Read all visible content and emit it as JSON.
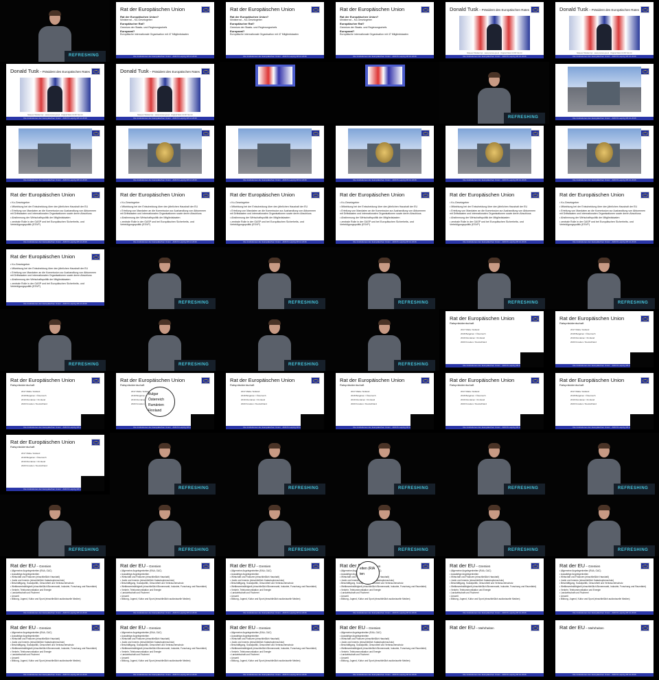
{
  "footer_text": "Die Institutionen der Europäischen Union · ADICS Leipzig 08.12.2016",
  "podium_brand": "REFRESHING",
  "slides": {
    "rat_intro": {
      "title": "Rat der Europäischen Union",
      "items": [
        {
          "head": "Rat der Europäischen Union?",
          "text": "Ministerrat – Ko-Gesetzgeber"
        },
        {
          "head": "Europäischer Rat?",
          "text": "Gremium der Staats- und Regierungschefs"
        },
        {
          "head": "Europarat?",
          "text": "Europäische internationale Organisation mit 47 Mitgliedstaaten"
        }
      ]
    },
    "tusk": {
      "title_main": "Donald Tusk",
      "title_sub": " – Präsident des Europäischen Rates",
      "caption": "Mateusz Wlodarczyk · www.premier.gov.pl · Original Work CC BY-SA 3.0"
    },
    "building_caption": "Mateusz Wlodarczyk · www.premier.gov.pl · Original Work CC BY-SA 3.0",
    "rat_tasks": {
      "title": "Rat der Europäischen Union",
      "items": [
        "• Ko-Gesetzgeber",
        "• Mitwirkung bei der Entscheidung über den jährlichen Haushalt der EU",
        "• Erteilung von Mandaten an die Kommission zur Aushandlung von Abkommen mit Drittstaaten und internationalen Organisationen sowie deren Abschluss",
        "• Abstimmung der Wirtschaftspolitik der Mitgliedstaaten",
        "• zentrale Rolle in der GASP und bei Europäischen Sicherheits- und Verteidigungspolitik (ESVP)"
      ]
    },
    "ratspraesidentschaft": {
      "title": "Rat der Europäischen Union",
      "subtitle": "Ratspräsidentschaft",
      "years": [
        "2017",
        "2018",
        "2019",
        "2020"
      ],
      "countries": [
        "Malta",
        "Estland",
        "Bulgarien",
        "Österreich",
        "Rumänien",
        "Finnland",
        "Kroatien",
        "Deutschland"
      ],
      "lens_lines": [
        "Bulgar",
        "Österreich",
        "Rumänien",
        "Finnland"
      ]
    },
    "gremien": {
      "title_main": "Rat der EU",
      "title_sub": " – Gremien",
      "items": [
        "• Allgemeine Angelegenheiten (RAA, GAC)",
        "• Auswärtige Angelegenheiten",
        "• Wirtschaft und Finanzen (einschließlich Haushalt)",
        "• Justiz und Inneres (einschließlich Katastrophenschutz)",
        "• Beschäftigung, Sozialpolitik, Gesundheit und Verbraucherschutz",
        "• Wettbewerbsfähigkeit (einschließlich Binnenmarkt, Industrie, Forschung und Raumfahrt)",
        "• Verkehr, Telekommunikation und Energie",
        "• Landwirtschaft und Fischerei",
        "• Umwelt",
        "• Bildung, Jugend, Kultur und Sport (einschließlich audiovisuelle Medien)"
      ],
      "lens_lines": [
        "eiten (RIA",
        "ten"
      ]
    },
    "mehrheiten": {
      "title_main": "Rat der EU",
      "title_sub": " – Mehrheiten"
    }
  },
  "frames": [
    "speaker",
    "rat_intro",
    "rat_intro",
    "rat_intro",
    "tusk",
    "tusk",
    "tusk",
    "tusk",
    "hall",
    "hall",
    "speaker",
    "building",
    "building",
    "building_egg",
    "building",
    "building_egg",
    "building_egg",
    "building_egg",
    "rat_tasks",
    "rat_tasks",
    "rat_tasks",
    "rat_tasks",
    "rat_tasks",
    "rat_tasks",
    "rat_tasks",
    "speaker",
    "speaker",
    "speaker",
    "speaker",
    "speaker",
    "speaker",
    "speaker",
    "speaker",
    "speaker",
    "rats",
    "rats",
    "rats",
    "rats_lens",
    "rats",
    "rats",
    "rats",
    "rats",
    "rats",
    "speaker",
    "speaker",
    "speaker",
    "speaker",
    "speaker",
    "speaker",
    "speaker",
    "speaker",
    "speaker",
    "speaker",
    "speaker",
    "gremien",
    "gremien",
    "gremien",
    "gremien_lens",
    "gremien",
    "gremien",
    "gremien",
    "gremien",
    "gremien",
    "gremien",
    "mehrheiten",
    "mehrheiten"
  ]
}
